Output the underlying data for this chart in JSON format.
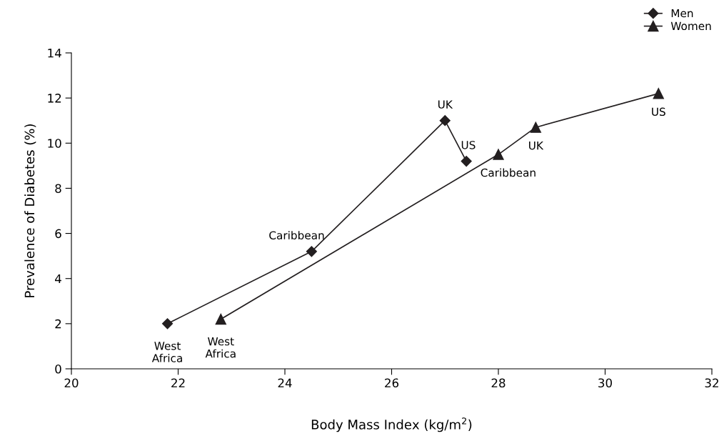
{
  "chart_data": {
    "type": "line",
    "xlabel": "Body Mass Index (kg/m$^{2}$)",
    "ylabel": "Prevalence of Diabetes (%)",
    "xlim": [
      20,
      32
    ],
    "xticks": [
      20,
      22,
      24,
      26,
      28,
      30,
      32
    ],
    "ylim": [
      0,
      14
    ],
    "yticks": [
      0,
      2,
      4,
      6,
      8,
      10,
      12,
      14
    ],
    "grid": false,
    "legend": "top right",
    "series": [
      {
        "name": "Men",
        "color": "#231f20",
        "marker": "diamond",
        "x": [
          21.8,
          24.5,
          27.0,
          27.4
        ],
        "values": [
          2.0,
          5.2,
          11.0,
          9.2
        ]
      },
      {
        "name": "Women",
        "color": "#231f20",
        "marker": "triangle",
        "x": [
          22.8,
          28.0,
          28.7,
          31.0
        ],
        "values": [
          2.2,
          9.5,
          10.7,
          12.2
        ]
      }
    ],
    "annotations": [
      {
        "text": "West\nAfrica",
        "x": 21.8,
        "y": 2.0
      },
      {
        "text": "Caribbean",
        "x": 24.5,
        "y": 5.2
      },
      {
        "text": "UK",
        "x": 27.0,
        "y": 11.0
      },
      {
        "text": "US",
        "x": 27.4,
        "y": 9.2
      },
      {
        "text": "West\nAfrica",
        "x": 22.8,
        "y": 2.2
      },
      {
        "text": "Caribbean",
        "x": 28.0,
        "y": 9.5
      },
      {
        "text": "UK",
        "x": 28.7,
        "y": 10.7
      },
      {
        "text": "US",
        "x": 31.0,
        "y": 12.2
      }
    ]
  }
}
